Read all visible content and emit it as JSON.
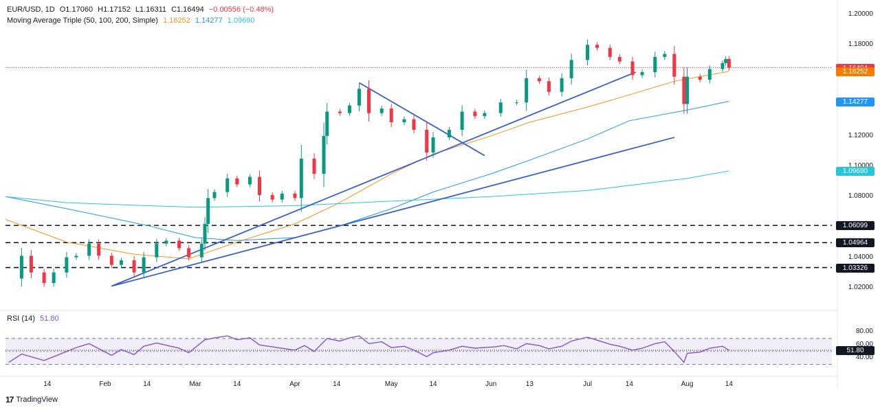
{
  "header": {
    "symbol": "EUR/USD, 1D",
    "open": "O1.17060",
    "high": "H1.17152",
    "low": "L1.16311",
    "close": "C1.16494",
    "change": "−0.00556 (−0.48%)",
    "ma_label": "Moving Average Triple (50, 100, 200, Simple)",
    "ma50": "1.16252",
    "ma100": "1.14277",
    "ma200": "1.09690",
    "rsi_label": "RSI (14)",
    "rsi_value": "51.80"
  },
  "brand": {
    "name": "TradingView",
    "icon": "tradingview-logo-icon"
  },
  "colors": {
    "up": "#089981",
    "down": "#f23645",
    "ma50": "#f7931a",
    "ma100": "#2196f3",
    "ma200": "#26c6da",
    "rsi": "#7e57c2",
    "trend": "#3a5fcd",
    "tag_price": "#f23645",
    "tag_ma50": "#f57c00",
    "tag_ma100": "#2196f3",
    "tag_ma200": "#26c6da",
    "tag_level": "#131722"
  },
  "price_axis": {
    "ticks": [
      "1.20000",
      "1.18000",
      "1.12000",
      "1.10000",
      "1.08000",
      "1.04000",
      "1.02000"
    ],
    "tick_values": [
      1.2,
      1.18,
      1.12,
      1.1,
      1.08,
      1.04,
      1.02
    ],
    "tags": [
      {
        "label": "1.16494",
        "value": 1.16494,
        "kind": "price"
      },
      {
        "label": "1.16252",
        "value": 1.16252,
        "kind": "ma50"
      },
      {
        "label": "1.14277",
        "value": 1.14277,
        "kind": "ma100"
      },
      {
        "label": "1.09690",
        "value": 1.0969,
        "kind": "ma200"
      },
      {
        "label": "1.06099",
        "value": 1.06099,
        "kind": "level"
      },
      {
        "label": "1.04964",
        "value": 1.04964,
        "kind": "level"
      },
      {
        "label": "1.03326",
        "value": 1.03326,
        "kind": "level"
      }
    ]
  },
  "rsi_axis": {
    "ticks": [
      "80.00",
      "60.00",
      "40.00"
    ],
    "tick_values": [
      80,
      60,
      40
    ],
    "current_label": "51.80",
    "current_value": 51.8
  },
  "time_axis": {
    "labels": [
      "14",
      "Feb",
      "14",
      "Mar",
      "14",
      "Apr",
      "14",
      "May",
      "14",
      "Jun",
      "13",
      "Jul",
      "14",
      "Aug",
      "14"
    ],
    "dates": [
      "2025-01-14",
      "2025-02-01",
      "2025-02-14",
      "2025-03-01",
      "2025-03-14",
      "2025-04-01",
      "2025-04-14",
      "2025-05-01",
      "2025-05-14",
      "2025-06-01",
      "2025-06-13",
      "2025-07-01",
      "2025-07-14",
      "2025-08-01",
      "2025-08-14"
    ]
  },
  "chart_data": {
    "type": "candlestick",
    "title": "EUR/USD, 1D",
    "x_range": [
      "2025-01-01",
      "2025-09-15"
    ],
    "ylim": [
      1.005,
      1.205
    ],
    "horizontal_levels": [
      1.06099,
      1.04964,
      1.03326
    ],
    "price_line": 1.16494,
    "closes": [
      [
        "2025-01-02",
        1.026
      ],
      [
        "2025-01-06",
        1.041
      ],
      [
        "2025-01-09",
        1.03
      ],
      [
        "2025-01-13",
        1.023
      ],
      [
        "2025-01-16",
        1.03
      ],
      [
        "2025-01-20",
        1.04
      ],
      [
        "2025-01-23",
        1.041
      ],
      [
        "2025-01-27",
        1.049
      ],
      [
        "2025-01-30",
        1.041
      ],
      [
        "2025-02-03",
        1.035
      ],
      [
        "2025-02-06",
        1.038
      ],
      [
        "2025-02-10",
        1.03
      ],
      [
        "2025-02-13",
        1.04
      ],
      [
        "2025-02-17",
        1.049
      ],
      [
        "2025-02-20",
        1.051
      ],
      [
        "2025-02-24",
        1.046
      ],
      [
        "2025-02-27",
        1.04
      ],
      [
        "2025-03-03",
        1.049
      ],
      [
        "2025-03-04",
        1.062
      ],
      [
        "2025-03-05",
        1.079
      ],
      [
        "2025-03-07",
        1.083
      ],
      [
        "2025-03-11",
        1.092
      ],
      [
        "2025-03-14",
        1.088
      ],
      [
        "2025-03-18",
        1.093
      ],
      [
        "2025-03-21",
        1.081
      ],
      [
        "2025-03-25",
        1.078
      ],
      [
        "2025-03-28",
        1.082
      ],
      [
        "2025-04-01",
        1.079
      ],
      [
        "2025-04-03",
        1.105
      ],
      [
        "2025-04-07",
        1.095
      ],
      [
        "2025-04-10",
        1.12
      ],
      [
        "2025-04-11",
        1.136
      ],
      [
        "2025-04-15",
        1.135
      ],
      [
        "2025-04-18",
        1.14
      ],
      [
        "2025-04-21",
        1.151
      ],
      [
        "2025-04-24",
        1.135
      ],
      [
        "2025-04-28",
        1.138
      ],
      [
        "2025-05-01",
        1.129
      ],
      [
        "2025-05-05",
        1.131
      ],
      [
        "2025-05-08",
        1.124
      ],
      [
        "2025-05-12",
        1.109
      ],
      [
        "2025-05-14",
        1.119
      ],
      [
        "2025-05-19",
        1.124
      ],
      [
        "2025-05-23",
        1.136
      ],
      [
        "2025-05-27",
        1.133
      ],
      [
        "2025-05-30",
        1.135
      ],
      [
        "2025-06-04",
        1.142
      ],
      [
        "2025-06-09",
        1.142
      ],
      [
        "2025-06-12",
        1.158
      ],
      [
        "2025-06-16",
        1.156
      ],
      [
        "2025-06-19",
        1.149
      ],
      [
        "2025-06-23",
        1.158
      ],
      [
        "2025-06-26",
        1.17
      ],
      [
        "2025-07-01",
        1.18
      ],
      [
        "2025-07-04",
        1.178
      ],
      [
        "2025-07-08",
        1.172
      ],
      [
        "2025-07-11",
        1.169
      ],
      [
        "2025-07-15",
        1.16
      ],
      [
        "2025-07-18",
        1.162
      ],
      [
        "2025-07-22",
        1.172
      ],
      [
        "2025-07-25",
        1.174
      ],
      [
        "2025-07-28",
        1.159
      ],
      [
        "2025-07-31",
        1.141
      ],
      [
        "2025-08-01",
        1.159
      ],
      [
        "2025-08-05",
        1.157
      ],
      [
        "2025-08-08",
        1.164
      ],
      [
        "2025-08-12",
        1.168
      ],
      [
        "2025-08-13",
        1.1706
      ],
      [
        "2025-08-14",
        1.16494
      ]
    ],
    "last_bar": {
      "date": "2025-08-14",
      "open": 1.1706,
      "high": 1.17152,
      "low": 1.16311,
      "close": 1.16494
    },
    "series": [
      {
        "name": "MA 50",
        "points": [
          [
            "2025-01-01",
            1.065
          ],
          [
            "2025-01-20",
            1.05
          ],
          [
            "2025-02-10",
            1.042
          ],
          [
            "2025-02-27",
            1.039
          ],
          [
            "2025-03-14",
            1.05
          ],
          [
            "2025-04-01",
            1.062
          ],
          [
            "2025-04-14",
            1.075
          ],
          [
            "2025-05-01",
            1.095
          ],
          [
            "2025-05-14",
            1.108
          ],
          [
            "2025-06-01",
            1.12
          ],
          [
            "2025-06-13",
            1.129
          ],
          [
            "2025-07-01",
            1.139
          ],
          [
            "2025-07-14",
            1.147
          ],
          [
            "2025-07-28",
            1.156
          ],
          [
            "2025-08-14",
            1.16252
          ]
        ]
      },
      {
        "name": "MA 100",
        "points": [
          [
            "2025-01-01",
            1.08
          ],
          [
            "2025-01-20",
            1.072
          ],
          [
            "2025-02-14",
            1.061
          ],
          [
            "2025-03-01",
            1.053
          ],
          [
            "2025-03-14",
            1.051
          ],
          [
            "2025-04-01",
            1.053
          ],
          [
            "2025-04-14",
            1.06
          ],
          [
            "2025-05-01",
            1.072
          ],
          [
            "2025-05-14",
            1.083
          ],
          [
            "2025-06-01",
            1.095
          ],
          [
            "2025-06-13",
            1.104
          ],
          [
            "2025-07-01",
            1.118
          ],
          [
            "2025-07-14",
            1.13
          ],
          [
            "2025-08-01",
            1.137
          ],
          [
            "2025-08-14",
            1.14277
          ]
        ]
      },
      {
        "name": "MA 200",
        "points": [
          [
            "2025-01-01",
            1.08
          ],
          [
            "2025-01-20",
            1.076
          ],
          [
            "2025-02-14",
            1.074
          ],
          [
            "2025-03-01",
            1.073
          ],
          [
            "2025-04-01",
            1.074
          ],
          [
            "2025-05-01",
            1.077
          ],
          [
            "2025-06-01",
            1.08
          ],
          [
            "2025-07-01",
            1.084
          ],
          [
            "2025-08-01",
            1.092
          ],
          [
            "2025-08-14",
            1.0969
          ]
        ]
      }
    ],
    "trendlines": [
      [
        [
          "2025-02-03",
          1.021
        ],
        [
          "2025-07-16",
          1.162
        ]
      ],
      [
        [
          "2025-02-03",
          1.021
        ],
        [
          "2025-07-28",
          1.119
        ]
      ],
      [
        [
          "2025-04-21",
          1.155
        ],
        [
          "2025-05-30",
          1.107
        ]
      ]
    ],
    "rsi": {
      "name": "RSI (14)",
      "ylim": [
        20,
        90
      ],
      "bands": [
        70,
        30
      ],
      "midline": 50,
      "points": [
        [
          "2025-01-02",
          33
        ],
        [
          "2025-01-06",
          46
        ],
        [
          "2025-01-13",
          36
        ],
        [
          "2025-01-16",
          42
        ],
        [
          "2025-01-23",
          56
        ],
        [
          "2025-01-27",
          62
        ],
        [
          "2025-02-03",
          44
        ],
        [
          "2025-02-06",
          53
        ],
        [
          "2025-02-10",
          45
        ],
        [
          "2025-02-13",
          58
        ],
        [
          "2025-02-17",
          63
        ],
        [
          "2025-02-24",
          55
        ],
        [
          "2025-02-27",
          48
        ],
        [
          "2025-03-04",
          68
        ],
        [
          "2025-03-07",
          71
        ],
        [
          "2025-03-11",
          74
        ],
        [
          "2025-03-14",
          68
        ],
        [
          "2025-03-18",
          71
        ],
        [
          "2025-03-21",
          60
        ],
        [
          "2025-03-25",
          57
        ],
        [
          "2025-04-01",
          52
        ],
        [
          "2025-04-04",
          59
        ],
        [
          "2025-04-07",
          50
        ],
        [
          "2025-04-11",
          70
        ],
        [
          "2025-04-15",
          66
        ],
        [
          "2025-04-18",
          71
        ],
        [
          "2025-04-21",
          74
        ],
        [
          "2025-04-24",
          62
        ],
        [
          "2025-04-28",
          65
        ],
        [
          "2025-05-01",
          56
        ],
        [
          "2025-05-05",
          58
        ],
        [
          "2025-05-08",
          52
        ],
        [
          "2025-05-12",
          42
        ],
        [
          "2025-05-14",
          48
        ],
        [
          "2025-05-19",
          52
        ],
        [
          "2025-05-23",
          58
        ],
        [
          "2025-05-27",
          55
        ],
        [
          "2025-06-02",
          57
        ],
        [
          "2025-06-05",
          59
        ],
        [
          "2025-06-09",
          54
        ],
        [
          "2025-06-12",
          62
        ],
        [
          "2025-06-16",
          59
        ],
        [
          "2025-06-19",
          54
        ],
        [
          "2025-06-23",
          58
        ],
        [
          "2025-06-26",
          66
        ],
        [
          "2025-07-01",
          72
        ],
        [
          "2025-07-03",
          69
        ],
        [
          "2025-07-08",
          61
        ],
        [
          "2025-07-11",
          58
        ],
        [
          "2025-07-15",
          52
        ],
        [
          "2025-07-18",
          55
        ],
        [
          "2025-07-22",
          62
        ],
        [
          "2025-07-25",
          65
        ],
        [
          "2025-07-28",
          50
        ],
        [
          "2025-07-31",
          33
        ],
        [
          "2025-08-01",
          47
        ],
        [
          "2025-08-05",
          49
        ],
        [
          "2025-08-08",
          55
        ],
        [
          "2025-08-12",
          58
        ],
        [
          "2025-08-14",
          51.8
        ]
      ]
    }
  }
}
